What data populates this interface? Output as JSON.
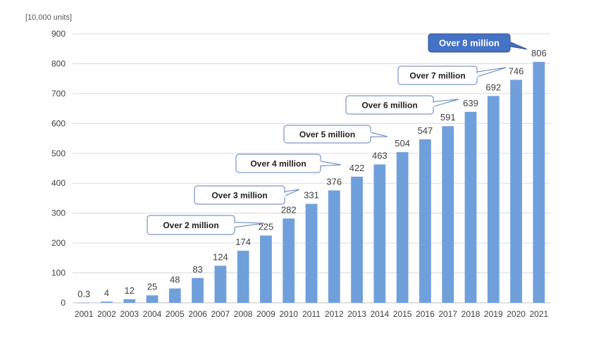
{
  "chart_data": {
    "type": "bar",
    "unit_label": "[10,000 units]",
    "categories": [
      "2001",
      "2002",
      "2003",
      "2004",
      "2005",
      "2006",
      "2007",
      "2008",
      "2009",
      "2010",
      "2011",
      "2012",
      "2013",
      "2014",
      "2015",
      "2016",
      "2017",
      "2018",
      "2019",
      "2020",
      "2021"
    ],
    "values": [
      0.3,
      4,
      12,
      25,
      48,
      83,
      124,
      174,
      225,
      282,
      331,
      376,
      422,
      463,
      504,
      547,
      591,
      639,
      692,
      746,
      806
    ],
    "data_labels": [
      "0.3",
      "4",
      "12",
      "25",
      "48",
      "83",
      "124",
      "174",
      "225",
      "282",
      "331",
      "376",
      "422",
      "463",
      "504",
      "547",
      "591",
      "639",
      "692",
      "746",
      "806"
    ],
    "ylim": [
      0,
      900
    ],
    "yticks": [
      0,
      100,
      200,
      300,
      400,
      500,
      600,
      700,
      800,
      900
    ],
    "grid": true,
    "bar_color": "#6fa0dc",
    "annotations": [
      {
        "text": "Over 2 million",
        "category": "2009",
        "highlight": false
      },
      {
        "text": "Over 3 million",
        "category": "2011",
        "highlight": false
      },
      {
        "text": "Over 4 million",
        "category": "2013",
        "highlight": false
      },
      {
        "text": "Over 5 million",
        "category": "2015",
        "highlight": false
      },
      {
        "text": "Over 6 million",
        "category": "2018",
        "highlight": false
      },
      {
        "text": "Over 7 million",
        "category": "2020",
        "highlight": false
      },
      {
        "text": "Over 8 million",
        "category": "2021",
        "highlight": true
      }
    ],
    "highlight_color": "#4472c4"
  }
}
